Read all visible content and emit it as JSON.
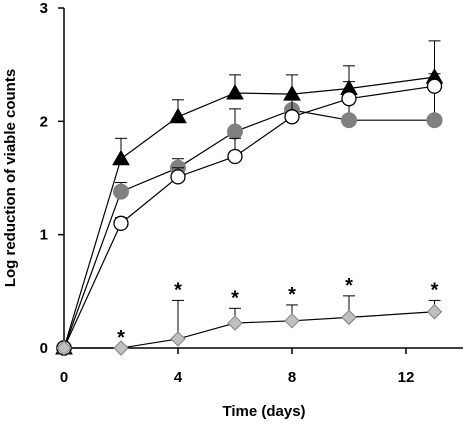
{
  "chart_data": {
    "type": "line",
    "title": "",
    "xlabel": "Time (days)",
    "ylabel": "Log reduction of viable counts",
    "xlim": [
      0,
      14
    ],
    "ylim": [
      0,
      3
    ],
    "xticks": [
      0,
      4,
      8,
      12
    ],
    "yticks": [
      0,
      1,
      2,
      3
    ],
    "xtick_labels": [
      "0",
      "4",
      "8",
      "12"
    ],
    "ytick_labels": [
      "0",
      "1",
      "2",
      "3"
    ],
    "grid": false,
    "legend": "none",
    "annotation_text": "*",
    "series": [
      {
        "marker": "triangle",
        "color": "#000000",
        "x": [
          0,
          2,
          4,
          6,
          8,
          10,
          13
        ],
        "y": [
          0,
          1.67,
          2.04,
          2.25,
          2.24,
          2.29,
          2.39
        ],
        "err": [
          0,
          0.18,
          0.15,
          0.16,
          0.17,
          0.2,
          0.32
        ]
      },
      {
        "marker": "circle-filled",
        "color": "#808080",
        "x": [
          0,
          2,
          4,
          6,
          8,
          10,
          13
        ],
        "y": [
          0,
          1.38,
          1.59,
          1.91,
          2.1,
          2.01,
          2.01
        ],
        "err": [
          0,
          0.08,
          0.08,
          0.2,
          0.12,
          0.22,
          0.32
        ]
      },
      {
        "marker": "circle-open",
        "color": "#000000",
        "x": [
          0,
          2,
          4,
          6,
          8,
          10,
          13
        ],
        "y": [
          0,
          1.1,
          1.51,
          1.69,
          2.04,
          2.2,
          2.31
        ],
        "err": [
          0,
          0.05,
          0.08,
          0.16,
          0.16,
          0.15,
          0.11
        ]
      },
      {
        "marker": "diamond",
        "color": "#bfbfbf",
        "x": [
          0,
          2,
          4,
          6,
          8,
          10,
          13
        ],
        "y": [
          0,
          0,
          0.08,
          0.22,
          0.24,
          0.27,
          0.32
        ],
        "err": [
          0,
          0,
          0.34,
          0.13,
          0.14,
          0.19,
          0.1
        ]
      }
    ],
    "significance_markers": [
      {
        "x": 2,
        "label": "*"
      },
      {
        "x": 4,
        "label": "*"
      },
      {
        "x": 6,
        "label": "*"
      },
      {
        "x": 8,
        "label": "*"
      },
      {
        "x": 10,
        "label": "*"
      },
      {
        "x": 13,
        "label": "*"
      }
    ]
  }
}
